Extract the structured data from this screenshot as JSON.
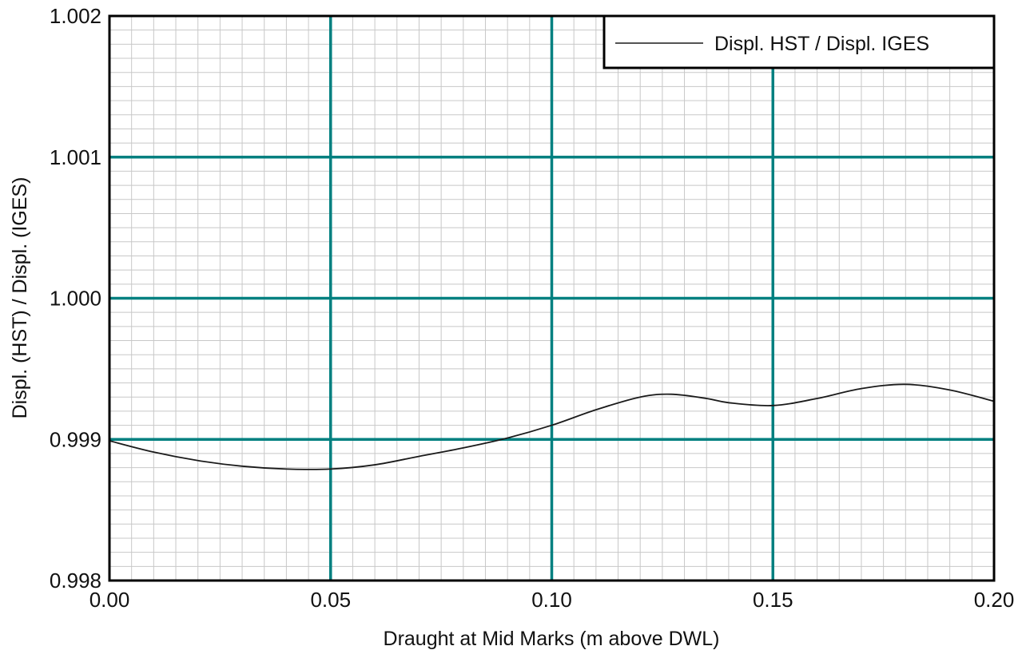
{
  "chart_data": {
    "type": "line",
    "title": "",
    "xlabel": "Draught at Mid Marks (m above DWL)",
    "ylabel": "Displ. (HST) / Displ. (IGES)",
    "xlim": [
      0.0,
      0.2
    ],
    "ylim": [
      0.998,
      1.002
    ],
    "x_ticks": [
      "0.00",
      "0.05",
      "0.10",
      "0.15",
      "0.20"
    ],
    "y_ticks": [
      "0.998",
      "0.999",
      "1.000",
      "1.001",
      "1.002"
    ],
    "grid": true,
    "legend_position": "top-right",
    "major_grid_color": "#008080",
    "minor_grid_color": "#c8c8c8",
    "line_color": "#1a1a1a",
    "series": [
      {
        "name": "Displ. HST / Displ. IGES",
        "x": [
          0.0,
          0.01,
          0.02,
          0.03,
          0.04,
          0.05,
          0.06,
          0.07,
          0.08,
          0.09,
          0.1,
          0.11,
          0.12,
          0.127,
          0.135,
          0.14,
          0.15,
          0.16,
          0.17,
          0.18,
          0.19,
          0.2
        ],
        "y": [
          0.99899,
          0.99891,
          0.99885,
          0.99881,
          0.99879,
          0.99879,
          0.99882,
          0.99888,
          0.99894,
          0.99901,
          0.9991,
          0.99921,
          0.9993,
          0.99932,
          0.99929,
          0.99926,
          0.99924,
          0.99929,
          0.99936,
          0.99939,
          0.99935,
          0.99927
        ]
      }
    ]
  }
}
